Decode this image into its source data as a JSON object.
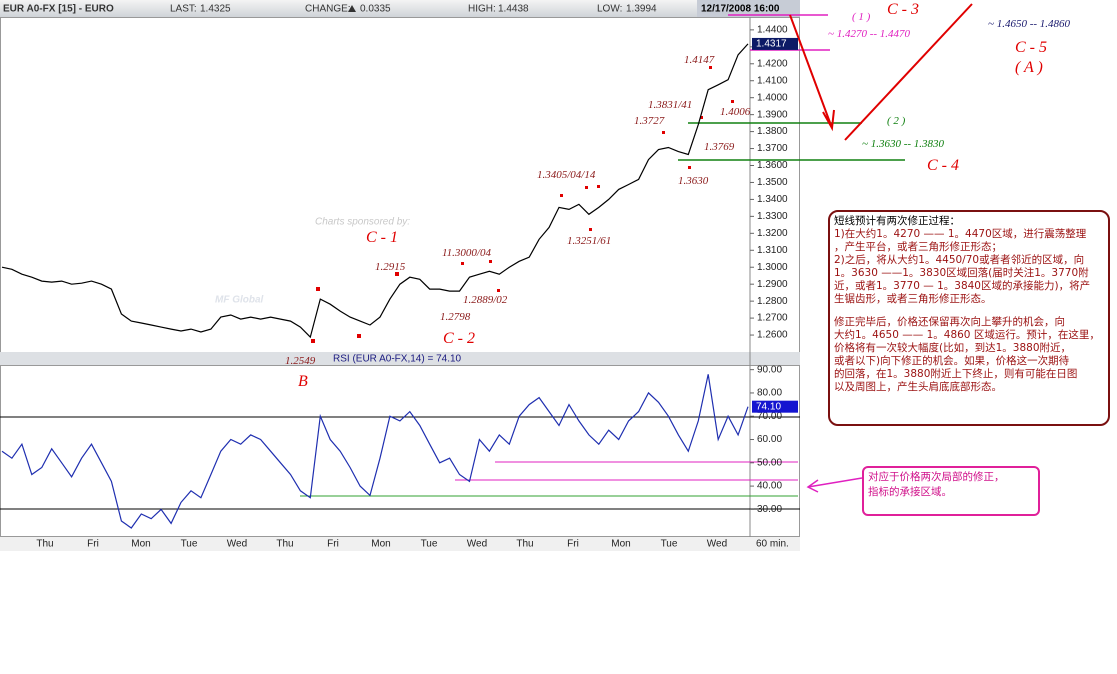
{
  "header": {
    "symbol": "EUR A0-FX [15] - EURO",
    "last_label": "LAST:",
    "last": 1.4325,
    "change_label": "CHANGE:",
    "change": 0.0335,
    "high_label": "HIGH:",
    "high": 1.4438,
    "low_label": "LOW:",
    "low": 1.3994,
    "datetime": "12/17/2008 16:00"
  },
  "chart_data": [
    {
      "type": "line",
      "color": "#000000",
      "values": [
        1.3,
        1.2988,
        1.2959,
        1.2941,
        1.2918,
        1.2912,
        1.2918,
        1.29,
        1.2906,
        1.2918,
        1.29,
        1.2871,
        1.2724,
        1.2682,
        1.2671,
        1.2659,
        1.2647,
        1.2635,
        1.2624,
        1.2635,
        1.2618,
        1.2635,
        1.2706,
        1.2718,
        1.2694,
        1.2706,
        1.2694,
        1.2706,
        1.2694,
        1.2682,
        1.2647,
        1.2588,
        1.2812,
        1.2782,
        1.2741,
        1.2706,
        1.2682,
        1.2659,
        1.2706,
        1.2812,
        1.29,
        1.2941,
        1.2929,
        1.2871,
        1.2871,
        1.2859,
        1.2859,
        1.2941,
        1.2959,
        1.2976,
        1.2959,
        1.3,
        1.3035,
        1.3059,
        1.3165,
        1.3235,
        1.3353,
        1.3341,
        1.3371,
        1.3312,
        1.3353,
        1.34,
        1.3459,
        1.3488,
        1.3518,
        1.3635,
        1.3694,
        1.3706,
        1.3682,
        1.3665,
        1.3841,
        1.4047,
        1.4076,
        1.4106,
        1.4253,
        1.4317
      ],
      "ylim": [
        1.25,
        1.447
      ],
      "yticks": [
        {
          "value": 1.26,
          "label": "1.2600"
        },
        {
          "value": 1.27,
          "label": "1.2700"
        },
        {
          "value": 1.28,
          "label": "1.2800"
        },
        {
          "value": 1.29,
          "label": "1.2900"
        },
        {
          "value": 1.3,
          "label": "1.3000"
        },
        {
          "value": 1.31,
          "label": "1.3100"
        },
        {
          "value": 1.32,
          "label": "1.3200"
        },
        {
          "value": 1.33,
          "label": "1.3300"
        },
        {
          "value": 1.34,
          "label": "1.3400"
        },
        {
          "value": 1.35,
          "label": "1.3500"
        },
        {
          "value": 1.36,
          "label": "1.3600"
        },
        {
          "value": 1.37,
          "label": "1.3700"
        },
        {
          "value": 1.38,
          "label": "1.3800"
        },
        {
          "value": 1.39,
          "label": "1.3900"
        },
        {
          "value": 1.4,
          "label": "1.4000"
        },
        {
          "value": 1.41,
          "label": "1.4100"
        },
        {
          "value": 1.42,
          "label": "1.4200"
        },
        {
          "value": 1.43,
          "label": "1.4300"
        },
        {
          "value": 1.44,
          "label": "1.4400"
        }
      ]
    },
    {
      "type": "line",
      "title": "RSI (EUR A0-FX,14) = 74.10",
      "color": "#1f2fb0",
      "current_label": "74.10",
      "values": [
        55,
        52,
        58,
        45,
        48,
        56,
        50,
        44,
        52,
        58,
        50,
        42,
        25,
        22,
        28,
        26,
        30,
        24,
        33,
        38,
        35,
        45,
        55,
        60,
        58,
        62,
        60,
        55,
        50,
        45,
        38,
        35,
        70,
        60,
        55,
        48,
        40,
        36,
        52,
        70,
        68,
        72,
        66,
        58,
        50,
        52,
        45,
        42,
        60,
        55,
        62,
        58,
        70,
        75,
        78,
        72,
        66,
        75,
        68,
        62,
        58,
        64,
        60,
        68,
        72,
        80,
        76,
        70,
        62,
        55,
        68,
        88,
        60,
        70,
        62,
        74.1
      ],
      "ylim": [
        19,
        92
      ],
      "yticks": [
        {
          "value": 30,
          "label": "30.00"
        },
        {
          "value": 40,
          "label": "40.00"
        },
        {
          "value": 50,
          "label": "50.00"
        },
        {
          "value": 60,
          "label": "60.00"
        },
        {
          "value": 70,
          "label": "70.00"
        },
        {
          "value": 80,
          "label": "80.00"
        },
        {
          "value": 90,
          "label": "90.00"
        }
      ]
    }
  ],
  "x_labels": [
    "Thu",
    "Fri",
    "Mon",
    "Tue",
    "Wed",
    "Thu",
    "Fri",
    "Mon",
    "Tue",
    "Wed",
    "Thu",
    "Fri",
    "Mon",
    "Tue",
    "Wed"
  ],
  "x_unit": "60 min.",
  "sponsor": "Charts sponsored by:",
  "logo": "MF Global",
  "annotations": [
    "1.4147",
    "1.3831/41",
    "1.3727",
    "1.4006",
    "1.3769",
    "1.3630",
    "1.3405/04/14",
    "1.3251/61",
    "11.3000/04",
    "1.2889/02",
    "1.2915",
    "1.2798",
    "1.2549",
    "C - 1",
    "C - 2",
    "B",
    "( 1 )",
    "C - 3",
    "~ 1.4270 -- 1.4470",
    "( 2 )",
    "~ 1.3630 -- 1.3830",
    "C - 4",
    "~ 1.4650 -- 1.4860",
    "C - 5",
    "( A )"
  ],
  "notes": {
    "title": "短线预计有两次修正过程：",
    "paragraphs": [
      [
        "1)在大约1。4270 —— 1。4470区域，进行震荡整理",
        "，产生平台，或者三角形修正形态；",
        "2)之后，将从大约1。4450/70或者者邻近的区域，向",
        "1。3630 ——1。3830区域回落(届时关注1。3770附",
        "近，或者1。3770 — 1。3840区域的承接能力)，将产",
        "生锯齿形，或者三角形修正形态。"
      ],
      [
        "修正完毕后，价格还保留再次向上攀升的机会，向",
        "大约1。4650 —— 1。4860 区域运行。预计，在这里，",
        "价格将有一次较大幅度(比如，到达1。3880附近，",
        "或者以下)向下修正的机会。如果，价格这一次期待",
        "的回落，在1。3880附近上下终止，则有可能在日图",
        "以及周图上，产生头肩底底部形态。"
      ]
    ]
  },
  "callout": [
    "对应于价格两次局部的修正，",
    "指标的承接区域。"
  ]
}
